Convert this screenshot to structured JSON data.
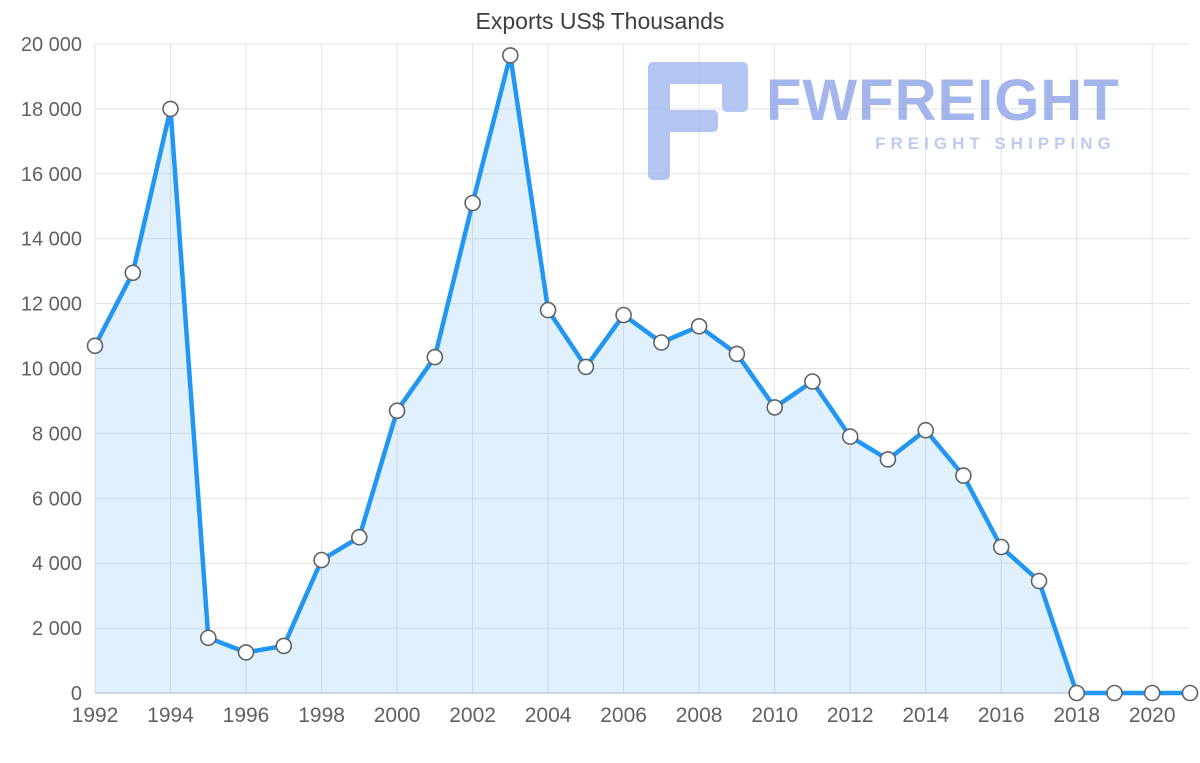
{
  "title": "Exports US$ Thousands",
  "watermark": {
    "brand": "FWFREIGHT",
    "tagline": "FREIGHT SHIPPING",
    "brand_color": "#93a9e8",
    "tagline_color": "#b3c3ef",
    "icon_color": "#a9bcf0"
  },
  "chart_data": {
    "type": "area",
    "title": "Exports US$ Thousands",
    "x": [
      1992,
      1993,
      1994,
      1995,
      1996,
      1997,
      1998,
      1999,
      2000,
      2001,
      2002,
      2003,
      2004,
      2005,
      2006,
      2007,
      2008,
      2009,
      2010,
      2011,
      2012,
      2013,
      2014,
      2015,
      2016,
      2017,
      2018,
      2019,
      2020,
      2021
    ],
    "values": [
      10700,
      12950,
      18000,
      1700,
      1250,
      1450,
      4100,
      4800,
      8700,
      10350,
      15100,
      19650,
      11800,
      10050,
      11650,
      10800,
      11300,
      10450,
      8800,
      9600,
      7900,
      7200,
      8100,
      6700,
      4500,
      3450,
      0,
      0,
      0,
      0
    ],
    "ylim": [
      0,
      20000
    ],
    "y_tick_step": 2000,
    "y_tick_labels": [
      "0",
      "2 000",
      "4 000",
      "6 000",
      "8 000",
      "10 000",
      "12 000",
      "14 000",
      "16 000",
      "18 000",
      "20 000"
    ],
    "x_tick_years": [
      1992,
      1994,
      1996,
      1998,
      2000,
      2002,
      2004,
      2006,
      2008,
      2010,
      2012,
      2014,
      2016,
      2018,
      2020
    ],
    "grid": true,
    "legend": "none",
    "line_color": "#2196f3",
    "fill_color": "rgba(33,150,243,0.14)",
    "marker_fill": "#ffffff",
    "marker_stroke": "#5f6368",
    "grid_color": "#e3e3e3"
  }
}
